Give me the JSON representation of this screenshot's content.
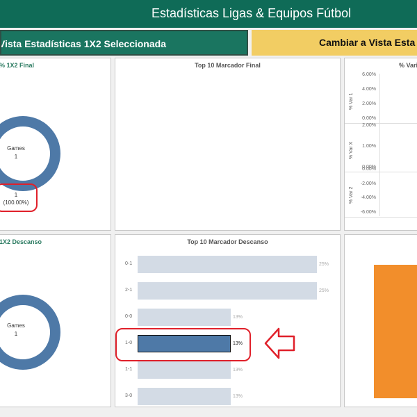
{
  "header": {
    "title": "Estadísticas Ligas & Equipos Fútbol"
  },
  "buttons": {
    "selected": "Vista Estadísticas 1X2 Seleccionada",
    "change": "Cambiar a Vista Esta"
  },
  "panels": {
    "final_1x2": {
      "title": "% 1X2 Final",
      "donut_label": "Games",
      "donut_value": "1",
      "count": "1",
      "percent": "(100.00%)"
    },
    "top10_final": {
      "title": "Top 10 Marcador Final"
    },
    "var_panel": {
      "title": "% Vari",
      "rows": [
        {
          "label": "% Var 1",
          "ticks": [
            "6.00%",
            "4.00%",
            "2.00%",
            "0.00%"
          ]
        },
        {
          "label": "% Var X",
          "ticks": [
            "2.00%",
            "1.00%",
            "0.00%"
          ]
        },
        {
          "label": "% Var 2",
          "ticks": [
            "0.00%",
            "-2.00%",
            "-4.00%",
            "-6.00%"
          ]
        }
      ]
    },
    "descanso_1x2": {
      "title": "1X2 Descanso",
      "donut_label": "Games",
      "donut_value": "1"
    },
    "top10_descanso": {
      "title": "Top 10 Marcador Descanso"
    }
  },
  "chart_data": {
    "type": "bar",
    "orientation": "horizontal",
    "title": "Top 10 Marcador Descanso",
    "categories": [
      "0-1",
      "2-1",
      "0-0",
      "1-0",
      "1-1",
      "3-0"
    ],
    "values": [
      25,
      25,
      13,
      13,
      13,
      13
    ],
    "value_labels": [
      "25%",
      "25%",
      "13%",
      "13%",
      "13%",
      "13%"
    ],
    "highlighted": "1-0",
    "xlim": [
      0,
      25
    ]
  },
  "colors": {
    "header_bg": "#0f6b57",
    "selected_button_bg": "#1a7560",
    "change_button_bg": "#f2cd63",
    "donut": "#4e79a7",
    "bar": "#d3dbe5",
    "bar_selected": "#4e79a7",
    "annotation": "#e0202a",
    "orange_block": "#f28e2b"
  },
  "annotations": {
    "arrow": "left-arrow-icon"
  }
}
